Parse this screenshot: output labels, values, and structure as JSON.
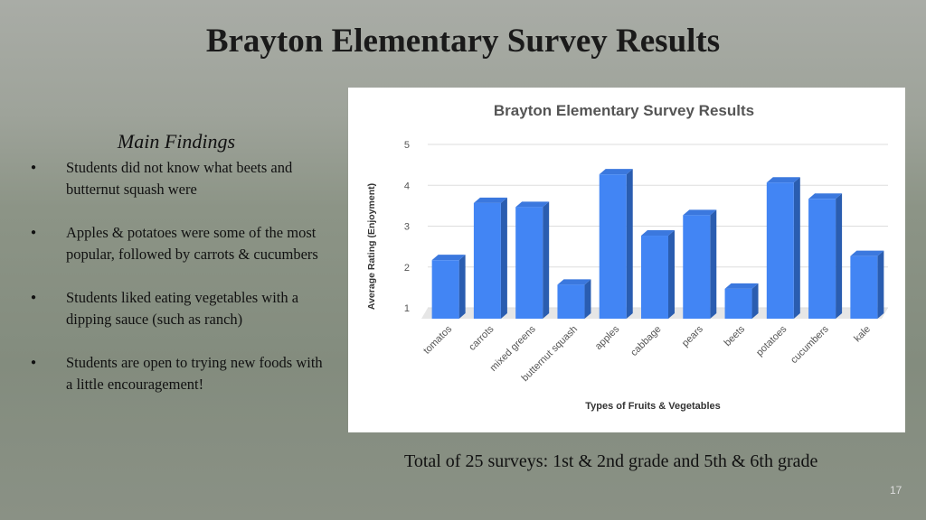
{
  "slide_title": "Brayton Elementary Survey Results",
  "findings": {
    "heading": "Main Findings",
    "items": [
      "Students did not know what beets and butternut squash were",
      "Apples & potatoes were some of the most popular, followed by carrots & cucumbers",
      "Students liked eating vegetables with a dipping sauce (such as ranch)",
      "Students are open to trying new foods with a little encouragement!"
    ]
  },
  "note": "Total of 25 surveys: 1st & 2nd grade and 5th & 6th grade",
  "page_number": "17",
  "chart_data": {
    "type": "bar3d",
    "title": "Brayton Elementary Survey Results",
    "x_label": "Types of Fruits & Vegetables",
    "y_label": "Average Rating (Enjoyment)",
    "categories": [
      "tomatos",
      "carrots",
      "mixed greens",
      "butternut squash",
      "apples",
      "cabbage",
      "pears",
      "beets",
      "potatoes",
      "cucumbers",
      "kale"
    ],
    "values": [
      2.3,
      3.7,
      3.6,
      1.7,
      4.4,
      2.9,
      3.4,
      1.6,
      4.2,
      3.8,
      2.4
    ],
    "color": "#4285f4",
    "ylim": [
      1,
      5
    ],
    "yticks": [
      1,
      2,
      3,
      4,
      5
    ],
    "grid": true
  }
}
